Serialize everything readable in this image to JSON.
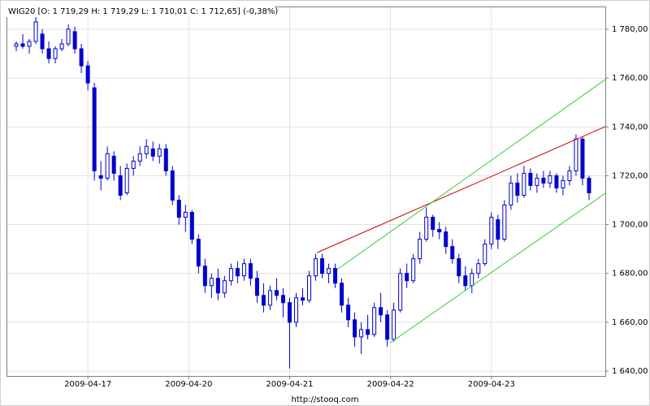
{
  "chart_data": {
    "type": "candlestick",
    "title": "WIG20 [O: 1 719,29  H: 1 719,29  L: 1 710,01  C: 1 712,65] (-0,38%)",
    "source": "http://stooq.com",
    "color": "#0000cc",
    "grid": true,
    "xlim": [
      0,
      184
    ],
    "xticks": [
      {
        "value": 25,
        "label": "2009-04-17"
      },
      {
        "value": 56,
        "label": "2009-04-20"
      },
      {
        "value": 87,
        "label": "2009-04-21"
      },
      {
        "value": 118,
        "label": "2009-04-22"
      },
      {
        "value": 149,
        "label": "2009-04-23"
      }
    ],
    "ylim": [
      1638,
      1789.3
    ],
    "yticks": [
      {
        "value": 1640,
        "label": "1 640,00"
      },
      {
        "value": 1660,
        "label": "1 660,00"
      },
      {
        "value": 1680,
        "label": "1 680,00"
      },
      {
        "value": 1700,
        "label": "1 700,00"
      },
      {
        "value": 1720,
        "label": "1 720,00"
      },
      {
        "value": 1740,
        "label": "1 740,00"
      },
      {
        "value": 1760,
        "label": "1 760,00"
      },
      {
        "value": 1780,
        "label": "1 780,00"
      }
    ],
    "x": [
      3,
      5,
      7,
      9,
      11,
      13,
      15,
      17,
      19,
      21,
      23,
      25,
      27,
      29,
      31,
      33,
      35,
      37,
      39,
      41,
      43,
      45,
      47,
      49,
      51,
      53,
      55,
      57,
      59,
      61,
      63,
      65,
      67,
      69,
      71,
      73,
      75,
      77,
      79,
      81,
      83,
      85,
      87,
      89,
      91,
      93,
      95,
      97,
      99,
      101,
      103,
      105,
      107,
      109,
      111,
      113,
      115,
      117,
      119,
      121,
      123,
      125,
      127,
      129,
      131,
      133,
      135,
      137,
      139,
      141,
      143,
      145,
      147,
      149,
      151,
      153,
      155,
      157,
      159,
      161,
      163,
      165,
      167,
      169,
      171,
      173,
      175,
      177,
      179
    ],
    "open": [
      1773,
      1774,
      1773,
      1775,
      1778,
      1772,
      1768,
      1772,
      1774,
      1779,
      1772,
      1765,
      1756,
      1720,
      1719,
      1728,
      1720,
      1713,
      1723,
      1726,
      1729,
      1731,
      1728,
      1731,
      1722,
      1710,
      1703,
      1705,
      1694,
      1683,
      1675,
      1678,
      1672,
      1677,
      1682,
      1679,
      1684,
      1678,
      1671,
      1667,
      1673,
      1671,
      1668,
      1660,
      1670,
      1669,
      1679,
      1686,
      1680,
      1682,
      1676,
      1667,
      1661,
      1654,
      1657,
      1655,
      1666,
      1663,
      1653,
      1665,
      1680,
      1677,
      1686,
      1694,
      1703,
      1698,
      1697,
      1691,
      1686,
      1679,
      1675,
      1680,
      1684,
      1692,
      1702,
      1694,
      1708,
      1717,
      1712,
      1721,
      1716,
      1719,
      1717,
      1720,
      1715,
      1718,
      1722,
      1735,
      1719
    ],
    "high": [
      1775,
      1778,
      1776,
      1786,
      1780,
      1775,
      1773,
      1776,
      1782,
      1781,
      1774,
      1767,
      1758,
      1726,
      1732,
      1730,
      1724,
      1725,
      1728,
      1732,
      1735,
      1734,
      1733,
      1733,
      1724,
      1712,
      1708,
      1706,
      1696,
      1686,
      1680,
      1682,
      1679,
      1684,
      1685,
      1686,
      1686,
      1681,
      1676,
      1675,
      1678,
      1674,
      1670,
      1672,
      1674,
      1681,
      1688,
      1688,
      1684,
      1684,
      1678,
      1670,
      1664,
      1660,
      1663,
      1668,
      1672,
      1665,
      1668,
      1682,
      1684,
      1688,
      1697,
      1707,
      1704,
      1701,
      1699,
      1694,
      1688,
      1683,
      1682,
      1686,
      1694,
      1705,
      1704,
      1710,
      1720,
      1721,
      1724,
      1723,
      1721,
      1722,
      1722,
      1721,
      1720,
      1724,
      1737,
      1736,
      1720
    ],
    "low": [
      1771,
      1772,
      1770,
      1774,
      1770,
      1766,
      1766,
      1771,
      1773,
      1770,
      1762,
      1755,
      1718,
      1714,
      1718,
      1718,
      1710,
      1712,
      1720,
      1724,
      1727,
      1726,
      1725,
      1720,
      1708,
      1700,
      1697,
      1692,
      1680,
      1672,
      1670,
      1669,
      1670,
      1675,
      1676,
      1677,
      1675,
      1668,
      1664,
      1665,
      1669,
      1662,
      1641,
      1658,
      1667,
      1668,
      1677,
      1678,
      1676,
      1674,
      1664,
      1658,
      1650,
      1647,
      1653,
      1654,
      1660,
      1650,
      1652,
      1664,
      1674,
      1676,
      1684,
      1693,
      1695,
      1694,
      1688,
      1684,
      1676,
      1673,
      1672,
      1678,
      1683,
      1690,
      1690,
      1693,
      1706,
      1709,
      1711,
      1714,
      1713,
      1715,
      1715,
      1713,
      1712,
      1716,
      1720,
      1716,
      1710
    ],
    "close": [
      1774,
      1773,
      1775,
      1783,
      1772,
      1768,
      1772,
      1774,
      1780,
      1772,
      1765,
      1758,
      1722,
      1719,
      1729,
      1721,
      1712,
      1723,
      1726,
      1729,
      1732,
      1728,
      1731,
      1722,
      1710,
      1703,
      1705,
      1694,
      1683,
      1675,
      1678,
      1672,
      1677,
      1682,
      1679,
      1684,
      1678,
      1671,
      1667,
      1673,
      1671,
      1668,
      1660,
      1670,
      1669,
      1679,
      1686,
      1680,
      1682,
      1676,
      1667,
      1661,
      1654,
      1657,
      1655,
      1666,
      1663,
      1653,
      1665,
      1680,
      1677,
      1686,
      1694,
      1703,
      1698,
      1697,
      1691,
      1686,
      1679,
      1675,
      1680,
      1684,
      1692,
      1703,
      1694,
      1708,
      1717,
      1712,
      1721,
      1716,
      1719,
      1717,
      1720,
      1715,
      1718,
      1722,
      1735,
      1719,
      1713
    ],
    "lines": [
      {
        "color": "#cc0000",
        "x": [
          95.4,
          184
        ],
        "y": [
          1688.5,
          1740.1
        ]
      },
      {
        "color": "#33cc33",
        "x": [
          101.6,
          184
        ],
        "y": [
          1681.6,
          1759.4
        ]
      },
      {
        "color": "#33cc33",
        "x": [
          117.9,
          184
        ],
        "y": [
          1651.6,
          1712.8
        ]
      }
    ]
  }
}
